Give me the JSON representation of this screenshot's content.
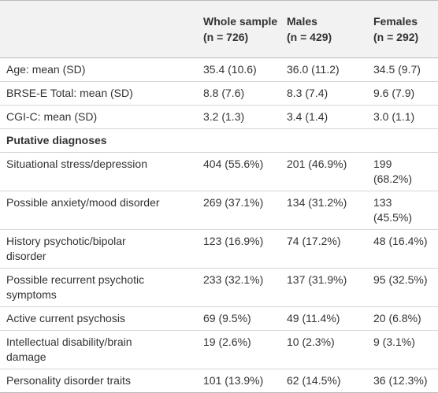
{
  "table": {
    "columns": [
      {
        "title": "Whole sample",
        "n": "(n = 726)"
      },
      {
        "title": "Males",
        "n": "(n = 429)"
      },
      {
        "title": "Females",
        "n": "(n = 292)"
      }
    ],
    "rows": [
      {
        "label": "Age: mean (SD)",
        "cells": [
          "35.4 (10.6)",
          "36.0 (11.2)",
          "34.5 (9.7)"
        ]
      },
      {
        "label": "BRSE-E Total: mean (SD)",
        "cells": [
          "8.8 (7.6)",
          "8.3 (7.4)",
          "9.6 (7.9)"
        ]
      },
      {
        "label": "CGI-C: mean (SD)",
        "cells": [
          "3.2 (1.3)",
          "3.4 (1.4)",
          "3.0 (1.1)"
        ]
      },
      {
        "section": "Putative diagnoses"
      },
      {
        "label": "Situational stress/depression",
        "cells": [
          "404 (55.6%)",
          "201 (46.9%)",
          "199 (68.2%)"
        ]
      },
      {
        "label": "Possible anxiety/mood disorder",
        "cells": [
          "269 (37.1%)",
          "134 (31.2%)",
          "133 (45.5%)"
        ]
      },
      {
        "label": "History psychotic/bipolar disorder",
        "cells": [
          "123 (16.9%)",
          "74 (17.2%)",
          "48 (16.4%)"
        ]
      },
      {
        "label": "Possible recurrent psychotic symptoms",
        "cells": [
          "233 (32.1%)",
          "137 (31.9%)",
          "95 (32.5%)"
        ]
      },
      {
        "label": "Active current psychosis",
        "cells": [
          "69 (9.5%)",
          "49 (11.4%)",
          "20 (6.8%)"
        ]
      },
      {
        "label": "Intellectual disability/brain damage",
        "cells": [
          "19 (2.6%)",
          "10 (2.3%)",
          "9 (3.1%)"
        ]
      },
      {
        "label": "Personality disorder traits",
        "cells": [
          "101 (13.9%)",
          "62 (14.5%)",
          "36 (12.3%)"
        ]
      }
    ]
  }
}
